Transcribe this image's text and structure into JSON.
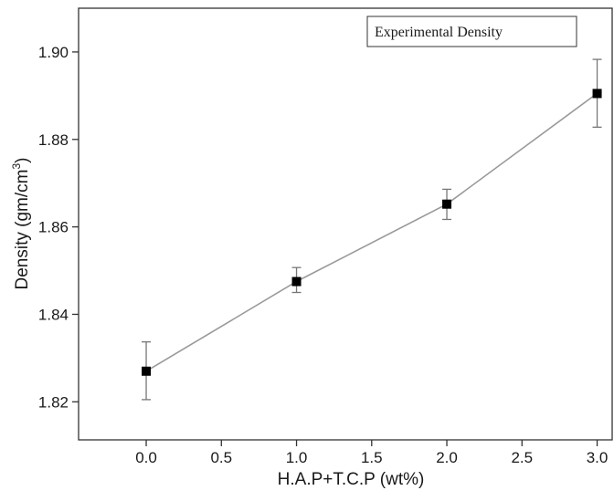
{
  "chart_data": {
    "type": "line",
    "title": "",
    "xlabel": "H.A.P+T.C.P (wt%)",
    "ylabel": {
      "text": "Density (gm/cm",
      "superscript": "3",
      "suffix": ")"
    },
    "xlim": [
      -0.45,
      3.1
    ],
    "ylim": [
      1.8113,
      1.91
    ],
    "x_ticks": [
      "0.0",
      "0.5",
      "1.0",
      "1.5",
      "2.0",
      "2.5",
      "3.0"
    ],
    "y_ticks": [
      "1.82",
      "1.84",
      "1.86",
      "1.88",
      "1.90"
    ],
    "grid": false,
    "legend_position": "top-right",
    "series": [
      {
        "name": "Experimental Density",
        "color": "#999999",
        "marker": "square",
        "marker_color": "#000000",
        "points": [
          {
            "x": 0.0,
            "y": 1.827,
            "err_low": 1.8205,
            "err_high": 1.8337
          },
          {
            "x": 1.0,
            "y": 1.8475,
            "err_low": 1.845,
            "err_high": 1.8507
          },
          {
            "x": 2.0,
            "y": 1.8652,
            "err_low": 1.8617,
            "err_high": 1.8686
          },
          {
            "x": 3.0,
            "y": 1.8905,
            "err_low": 1.8828,
            "err_high": 1.8983
          }
        ]
      }
    ]
  }
}
